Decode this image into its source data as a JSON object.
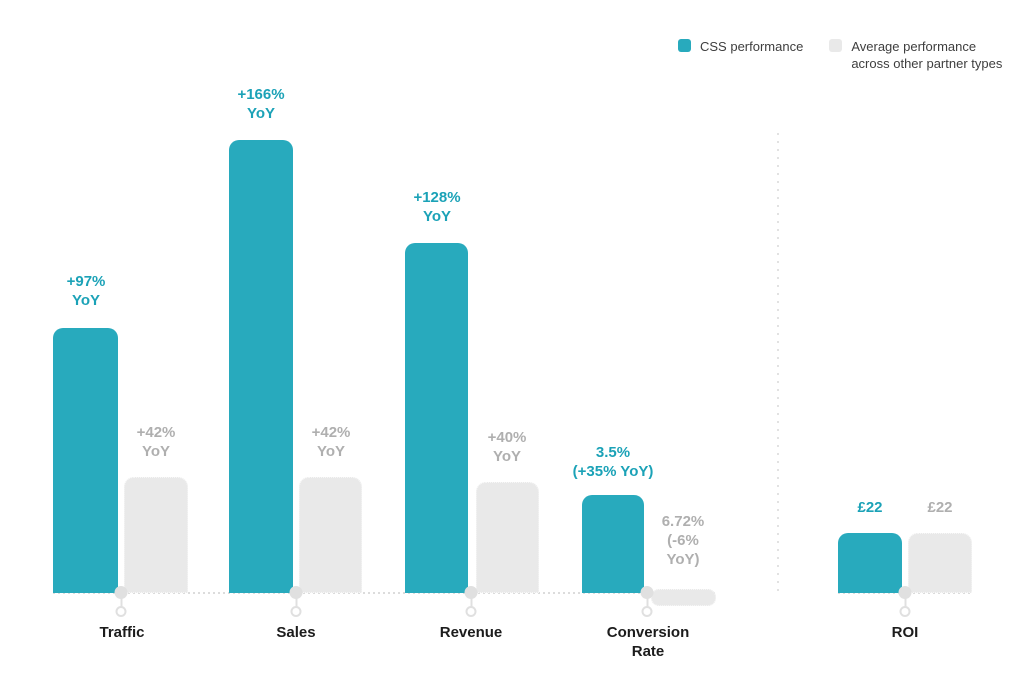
{
  "legend": {
    "css": "CSS performance",
    "avg": "Average performance\nacross other partner types"
  },
  "colors": {
    "css_bar": "#28AABD",
    "css_text": "#1BA2B7",
    "avg_bar": "#E9E9E9",
    "avg_text": "#AFAFAF",
    "category_text": "#1C1C1C",
    "axis": "#DCDCDC"
  },
  "chart_data": {
    "type": "bar",
    "title": "",
    "legend_position": "top-right",
    "grid": false,
    "categories": [
      "Traffic",
      "Sales",
      "Revenue",
      "Conversion Rate",
      "ROI"
    ],
    "series": [
      {
        "name": "CSS performance",
        "values": [
          97,
          166,
          128,
          3.5,
          22
        ]
      },
      {
        "name": "Average performance across other partner types",
        "values": [
          42,
          42,
          40,
          6.72,
          22
        ]
      }
    ],
    "groups": [
      {
        "category": "Traffic",
        "css": {
          "label": "+97%\nYoY",
          "yoy_pct": 97
        },
        "avg": {
          "label": "+42%\nYoY",
          "yoy_pct": 42
        }
      },
      {
        "category": "Sales",
        "css": {
          "label": "+166%\nYoY",
          "yoy_pct": 166
        },
        "avg": {
          "label": "+42%\nYoY",
          "yoy_pct": 42
        }
      },
      {
        "category": "Revenue",
        "css": {
          "label": "+128%\nYoY",
          "yoy_pct": 128
        },
        "avg": {
          "label": "+40%\nYoY",
          "yoy_pct": 40
        }
      },
      {
        "category": "Conversion\nRate",
        "css": {
          "label": "3.5%\n(+35% YoY)",
          "rate_pct": 3.5,
          "yoy_pct": 35
        },
        "avg": {
          "label": "6.72%\n(-6%\nYoY)",
          "rate_pct": 6.72,
          "yoy_pct": -6
        }
      },
      {
        "category": "ROI",
        "css": {
          "label": "£22",
          "value_gbp": 22
        },
        "avg": {
          "label": "£22",
          "value_gbp": 22
        }
      }
    ]
  }
}
